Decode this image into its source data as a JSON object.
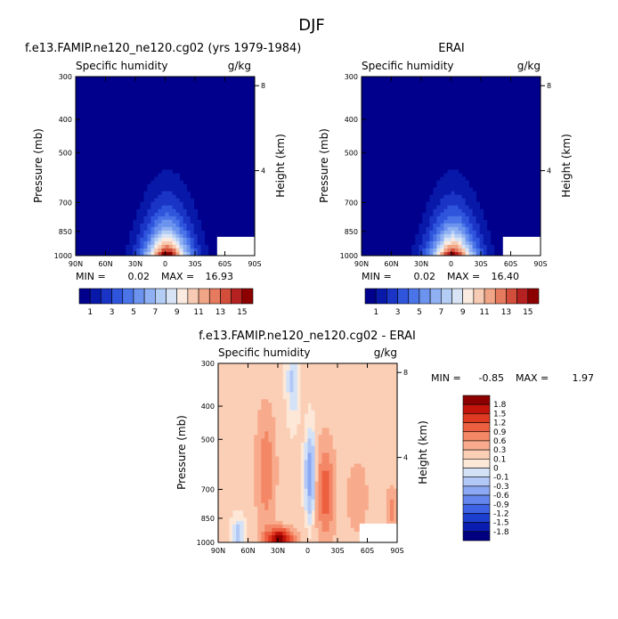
{
  "page_title": "DJF",
  "colors": {
    "ocean_blue": "#000080",
    "mask": "#ffffff",
    "humidity_scale": [
      "#00008c",
      "#0818a8",
      "#1a34c6",
      "#2f55dc",
      "#4a74e8",
      "#6c93ee",
      "#8fb0f2",
      "#b4cdf5",
      "#d8e4f6",
      "#faeadf",
      "#f7cbb3",
      "#f1a587",
      "#e57a5e",
      "#d24e3a",
      "#b52020",
      "#8c0000"
    ],
    "diff_scale": [
      "#000080",
      "#0a1db0",
      "#1c3fd0",
      "#3d62e4",
      "#6385ee",
      "#8aa8f3",
      "#b2c8f6",
      "#d4e2f8",
      "#fde8d8",
      "#fbcfb6",
      "#f8ab8c",
      "#f38766",
      "#ec6041",
      "#df3a21",
      "#c3140b",
      "#8c0000"
    ]
  },
  "chart_data": [
    {
      "type": "heatmap",
      "title": "f.e13.FAMIP.ne120_ne120.cg02 (yrs 1979-1984)",
      "subtitle_left": "Specific humidity",
      "subtitle_right": "g/kg",
      "ylabel": "Pressure (mb)",
      "ylabel_right": "Height (km)",
      "x_ticks": [
        "90N",
        "60N",
        "30N",
        "0",
        "30S",
        "60S",
        "90S"
      ],
      "y_ticks": [
        "300",
        "400",
        "500",
        "700",
        "850",
        "1000"
      ],
      "y_ticks_right": [
        "8",
        "4"
      ],
      "stats": {
        "min_label": "MIN =",
        "min": "0.02",
        "max_label": "MAX =",
        "max": "16.93"
      },
      "peak_value": 16.93,
      "colorbar_labels": [
        "1",
        "3",
        "5",
        "7",
        "9",
        "11",
        "13",
        "15"
      ]
    },
    {
      "type": "heatmap",
      "title": "ERAI",
      "subtitle_left": "Specific humidity",
      "subtitle_right": "g/kg",
      "ylabel": "Pressure (mb)",
      "ylabel_right": "Height (km)",
      "x_ticks": [
        "90N",
        "60N",
        "30N",
        "0",
        "30S",
        "60S",
        "90S"
      ],
      "y_ticks": [
        "300",
        "400",
        "500",
        "700",
        "850",
        "1000"
      ],
      "y_ticks_right": [
        "8",
        "4"
      ],
      "stats": {
        "min_label": "MIN =",
        "min": "0.02",
        "max_label": "MAX =",
        "max": "16.40"
      },
      "peak_value": 16.4,
      "colorbar_labels": [
        "1",
        "3",
        "5",
        "7",
        "9",
        "11",
        "13",
        "15"
      ]
    },
    {
      "type": "heatmap",
      "title": "f.e13.FAMIP.ne120_ne120.cg02 - ERAI",
      "subtitle_left": "Specific humidity",
      "subtitle_right": "g/kg",
      "ylabel": "Pressure (mb)",
      "ylabel_right": "Height (km)",
      "x_ticks": [
        "90N",
        "60N",
        "30N",
        "0",
        "30S",
        "60S",
        "90S"
      ],
      "y_ticks": [
        "300",
        "400",
        "500",
        "700",
        "850",
        "1000"
      ],
      "y_ticks_right": [
        "8",
        "4"
      ],
      "stats": {
        "min_label": "MIN =",
        "min": "-0.85",
        "max_label": "MAX =",
        "max": "1.97"
      },
      "colorbar_labels": [
        "1.8",
        "1.5",
        "1.2",
        "0.9",
        "0.6",
        "0.3",
        "0.1",
        "0",
        "-0.1",
        "-0.3",
        "-0.6",
        "-0.9",
        "-1.2",
        "-1.5",
        "-1.8"
      ]
    }
  ]
}
